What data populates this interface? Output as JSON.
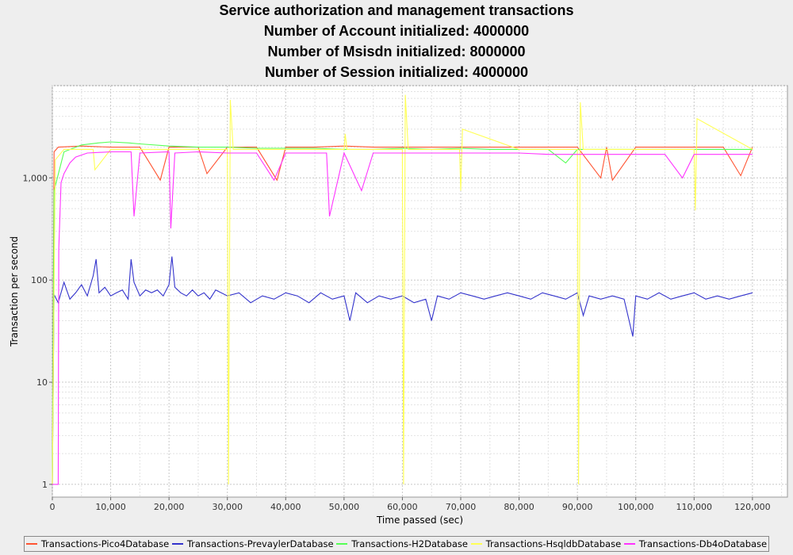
{
  "titles": [
    "Service authorization and management transactions",
    "Number of Account initialized: 4000000",
    "Number of Msisdn initialized: 8000000",
    "Number of Session initialized: 4000000"
  ],
  "chart_data": {
    "type": "line",
    "xlabel": "Time passed (sec)",
    "ylabel": "Transaction per second",
    "xlim": [
      0,
      126000
    ],
    "ylim": [
      0.75,
      8000
    ],
    "yscale": "log",
    "x_ticks": [
      0,
      10000,
      20000,
      30000,
      40000,
      50000,
      60000,
      70000,
      80000,
      90000,
      100000,
      110000,
      120000
    ],
    "x_tick_labels": [
      "0",
      "10,000",
      "20,000",
      "30,000",
      "40,000",
      "50,000",
      "60,000",
      "70,000",
      "80,000",
      "90,000",
      "100,000",
      "110,000",
      "120,000"
    ],
    "y_ticks": [
      1,
      10,
      100,
      1000
    ],
    "y_tick_labels": [
      "1",
      "10",
      "100",
      "1,000"
    ],
    "grid": true,
    "legend_position": "bottom",
    "series": [
      {
        "name": "Transactions-Pico4Database",
        "color": "#ff5533",
        "x": [
          0,
          300,
          1000,
          5000,
          10000,
          15000,
          18500,
          20000,
          25000,
          26500,
          30000,
          35000,
          38500,
          40000,
          45000,
          50000,
          55000,
          60000,
          65000,
          70000,
          75000,
          80000,
          85000,
          90000,
          94000,
          95000,
          96000,
          100000,
          105000,
          110000,
          115000,
          118000,
          120000
        ],
        "y": [
          1,
          1800,
          2000,
          2050,
          2000,
          2000,
          950,
          2000,
          2000,
          1100,
          2000,
          2000,
          950,
          2000,
          2000,
          2050,
          2000,
          2000,
          2000,
          2000,
          2000,
          2000,
          2000,
          2000,
          1000,
          2000,
          950,
          2000,
          2000,
          2000,
          2000,
          1050,
          2000
        ]
      },
      {
        "name": "Transactions-PrevaylerDatabase",
        "color": "#3333cc",
        "x": [
          0,
          300,
          1000,
          2000,
          3000,
          4000,
          5000,
          6000,
          7000,
          7500,
          8000,
          9000,
          10000,
          11000,
          12000,
          13000,
          13500,
          14000,
          15000,
          16000,
          17000,
          18000,
          19000,
          20000,
          20500,
          21000,
          22000,
          23000,
          24000,
          25000,
          26000,
          27000,
          28000,
          30000,
          32000,
          34000,
          36000,
          38000,
          40000,
          42000,
          44000,
          46000,
          48000,
          50000,
          51000,
          52000,
          54000,
          56000,
          58000,
          60000,
          62000,
          64000,
          65000,
          66000,
          68000,
          70000,
          72000,
          74000,
          76000,
          78000,
          80000,
          82000,
          84000,
          86000,
          88000,
          90000,
          91000,
          92000,
          94000,
          96000,
          98000,
          99500,
          100000,
          102000,
          104000,
          106000,
          108000,
          110000,
          112000,
          114000,
          116000,
          118000,
          120000
        ],
        "y": [
          1,
          72,
          60,
          95,
          65,
          75,
          90,
          70,
          110,
          160,
          75,
          85,
          70,
          75,
          80,
          65,
          160,
          95,
          70,
          80,
          75,
          80,
          70,
          90,
          170,
          85,
          75,
          70,
          80,
          70,
          75,
          65,
          80,
          70,
          75,
          60,
          70,
          65,
          75,
          70,
          60,
          75,
          65,
          70,
          40,
          75,
          60,
          70,
          65,
          70,
          60,
          65,
          40,
          70,
          65,
          75,
          70,
          65,
          70,
          75,
          70,
          65,
          75,
          70,
          65,
          75,
          45,
          70,
          65,
          70,
          65,
          28,
          70,
          65,
          75,
          65,
          70,
          75,
          65,
          70,
          65,
          70,
          75
        ]
      },
      {
        "name": "Transactions-H2Database",
        "color": "#55ff55",
        "x": [
          0,
          300,
          2000,
          5000,
          8000,
          10000,
          13000,
          15000,
          20000,
          25000,
          30000,
          35000,
          40000,
          45000,
          50000,
          55000,
          60000,
          65000,
          70000,
          75000,
          80000,
          85000,
          88000,
          90000,
          95000,
          100000,
          105000,
          110000,
          115000,
          120000
        ],
        "y": [
          1,
          750,
          1800,
          2100,
          2200,
          2250,
          2200,
          2150,
          2050,
          2000,
          2000,
          1950,
          1950,
          1950,
          1900,
          1900,
          1950,
          1900,
          1950,
          1900,
          1900,
          1900,
          1400,
          1900,
          1900,
          1900,
          1900,
          1900,
          1900,
          1900
        ]
      },
      {
        "name": "Transactions-HsqldbDatabase",
        "color": "#ffff55",
        "x": [
          0,
          500,
          2000,
          7000,
          7300,
          10000,
          30000,
          30200,
          30500,
          31000,
          40000,
          50000,
          50200,
          50500,
          60000,
          60200,
          60500,
          61000,
          69800,
          70000,
          70300,
          80000,
          90000,
          90200,
          90500,
          91000,
          100000,
          110000,
          110200,
          110500,
          120000
        ],
        "y": [
          1,
          1500,
          1900,
          1900,
          1200,
          1900,
          1900,
          1,
          5800,
          1900,
          1900,
          1900,
          2700,
          1900,
          1900,
          1,
          6500,
          1900,
          1900,
          750,
          3000,
          1900,
          1900,
          1,
          5500,
          1900,
          1900,
          1900,
          480,
          3800,
          1900
        ]
      },
      {
        "name": "Transactions-Db4oDatabase",
        "color": "#ff33ff",
        "x": [
          0,
          500,
          1000,
          1100,
          1500,
          2000,
          3000,
          4000,
          6000,
          10000,
          13500,
          14000,
          15000,
          20000,
          20300,
          21000,
          25000,
          30000,
          35000,
          38000,
          40000,
          45000,
          47000,
          47500,
          50000,
          53000,
          55000,
          60000,
          65000,
          70000,
          75000,
          80000,
          85000,
          90000,
          95000,
          100000,
          105000,
          108000,
          110000,
          115000,
          120000
        ],
        "y": [
          1,
          1,
          1,
          200,
          900,
          1100,
          1400,
          1600,
          1750,
          1800,
          1800,
          420,
          1750,
          1800,
          320,
          1750,
          1800,
          1750,
          1750,
          950,
          1750,
          1750,
          1750,
          420,
          1750,
          750,
          1750,
          1750,
          1750,
          1750,
          1750,
          1750,
          1700,
          1700,
          1700,
          1700,
          1700,
          1000,
          1700,
          1700,
          1700
        ]
      }
    ]
  }
}
